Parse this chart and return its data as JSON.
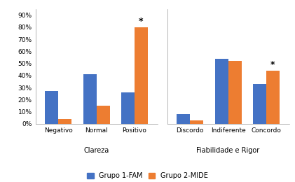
{
  "groups1": [
    "Negativo",
    "Normal",
    "Positivo"
  ],
  "groups2": [
    "Discordo",
    "Indiferente",
    "Concordo"
  ],
  "group1_values1": [
    0.27,
    0.41,
    0.26
  ],
  "group2_values1": [
    0.04,
    0.15,
    0.8
  ],
  "group1_values2": [
    0.08,
    0.54,
    0.33
  ],
  "group2_values2": [
    0.03,
    0.52,
    0.44
  ],
  "color1": "#4472C4",
  "color2": "#ED7D31",
  "ylim": [
    0,
    0.95
  ],
  "yticks": [
    0.0,
    0.1,
    0.2,
    0.3,
    0.4,
    0.5,
    0.6,
    0.7,
    0.8,
    0.9
  ],
  "ytick_labels": [
    "0%",
    "10%",
    "20%",
    "30%",
    "40%",
    "50%",
    "60%",
    "70%",
    "80%",
    "90%"
  ],
  "section1_label": "Clareza",
  "section2_label": "Fiabilidade e Rigor",
  "legend1": "Grupo 1-FAM",
  "legend2": "Grupo 2-MIDE",
  "star1_idx": 2,
  "star2_idx": 2,
  "bar_width": 0.35
}
